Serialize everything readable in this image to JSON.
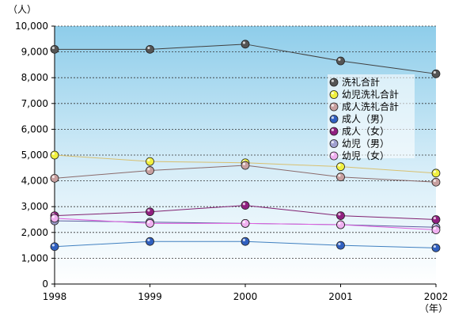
{
  "chart_data": {
    "type": "line",
    "y_unit": "（人）",
    "x_unit": "（年）",
    "ylim": [
      0,
      10000
    ],
    "yticks": [
      "0",
      "1,000",
      "2,000",
      "3,000",
      "4,000",
      "5,000",
      "6,000",
      "7,000",
      "8,000",
      "9,000",
      "10,000"
    ],
    "ytick_values": [
      0,
      1000,
      2000,
      3000,
      4000,
      5000,
      6000,
      7000,
      8000,
      9000,
      10000
    ],
    "x": [
      "1998",
      "1999",
      "2000",
      "2001",
      "2002"
    ],
    "grid": true,
    "legend_position": "right",
    "series": [
      {
        "name": "洗礼合計",
        "color": "#555555",
        "line": "#404040",
        "values": [
          9100,
          9100,
          9300,
          8650,
          8150
        ]
      },
      {
        "name": "幼児洗礼合計",
        "color": "#f0f040",
        "line": "#d8c070",
        "values": [
          5000,
          4750,
          4700,
          4550,
          4300
        ]
      },
      {
        "name": "成人洗礼合計",
        "color": "#c8a0a0",
        "line": "#8a6a6a",
        "values": [
          4100,
          4400,
          4600,
          4150,
          3950
        ]
      },
      {
        "name": "成人（男）",
        "color": "#3060c0",
        "line": "#4080c0",
        "values": [
          1450,
          1650,
          1650,
          1500,
          1400
        ]
      },
      {
        "name": "成人（女）",
        "color": "#902080",
        "line": "#802070",
        "values": [
          2650,
          2800,
          3050,
          2650,
          2500
        ]
      },
      {
        "name": "幼児（男）",
        "color": "#a0a0d0",
        "line": "#6060a0",
        "values": [
          2450,
          2400,
          2350,
          2300,
          2200
        ]
      },
      {
        "name": "幼児（女）",
        "color": "#f0b0f0",
        "line": "#e060e0",
        "values": [
          2550,
          2350,
          2350,
          2300,
          2100
        ]
      }
    ]
  }
}
